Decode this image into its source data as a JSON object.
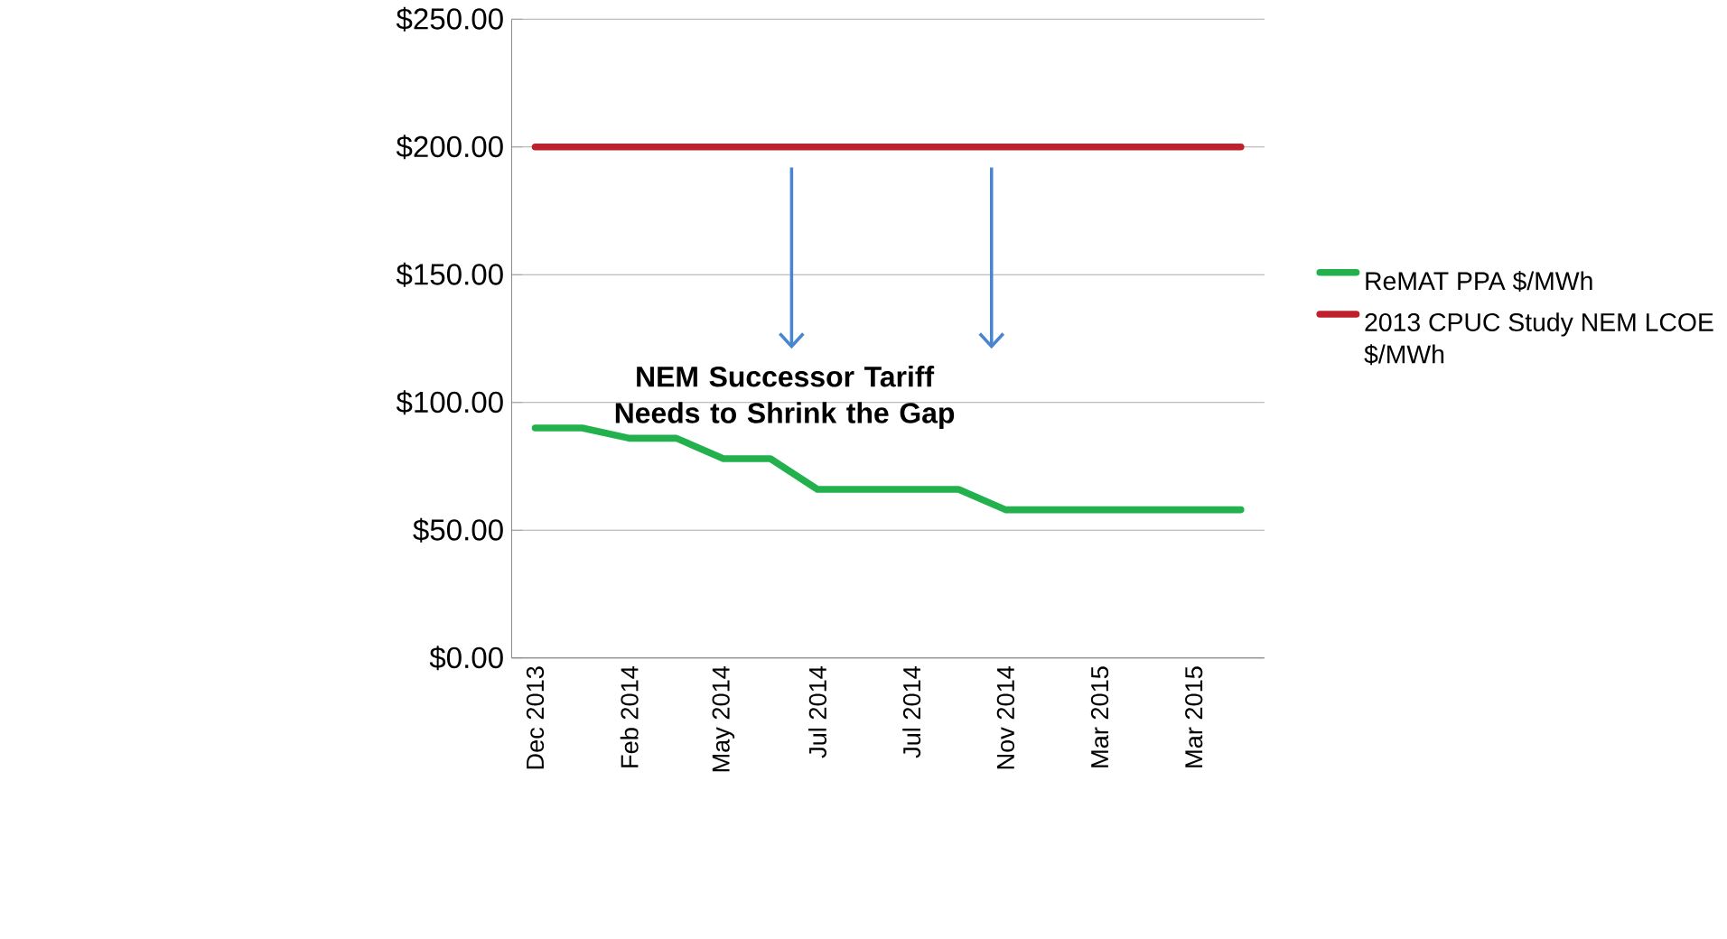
{
  "chart_data": {
    "type": "line",
    "categories": [
      "Dec 2013",
      null,
      "Feb 2014",
      null,
      "May 2014",
      null,
      "Jul 2014",
      null,
      "Jul 2014",
      null,
      "Nov 2014",
      null,
      "Mar 2015",
      null,
      "Mar 2015",
      null
    ],
    "series": [
      {
        "name": "ReMAT PPA $/MWh",
        "color": "#22b14c",
        "values": [
          90,
          90,
          86,
          86,
          78,
          78,
          66,
          66,
          66,
          66,
          58,
          58,
          58,
          58,
          58,
          58
        ]
      },
      {
        "name": "2013 CPUC Study NEM LCOE $/MWh",
        "color": "#c0202a",
        "values": [
          200,
          200,
          200,
          200,
          200,
          200,
          200,
          200,
          200,
          200,
          200,
          200,
          200,
          200,
          200,
          200
        ]
      }
    ],
    "ylim": [
      0,
      250
    ],
    "yticks": [
      {
        "value": 0,
        "label": "$0.00"
      },
      {
        "value": 50,
        "label": "$50.00"
      },
      {
        "value": 100,
        "label": "$100.00"
      },
      {
        "value": 150,
        "label": "$150.00"
      },
      {
        "value": 200,
        "label": "$200.00"
      },
      {
        "value": 250,
        "label": "$250.00"
      }
    ],
    "grid": "y",
    "legend": "right",
    "marker": "none",
    "line_style": "solid",
    "annotations": [
      "NEM Successor Tariff Needs to Shrink the Gap"
    ]
  }
}
